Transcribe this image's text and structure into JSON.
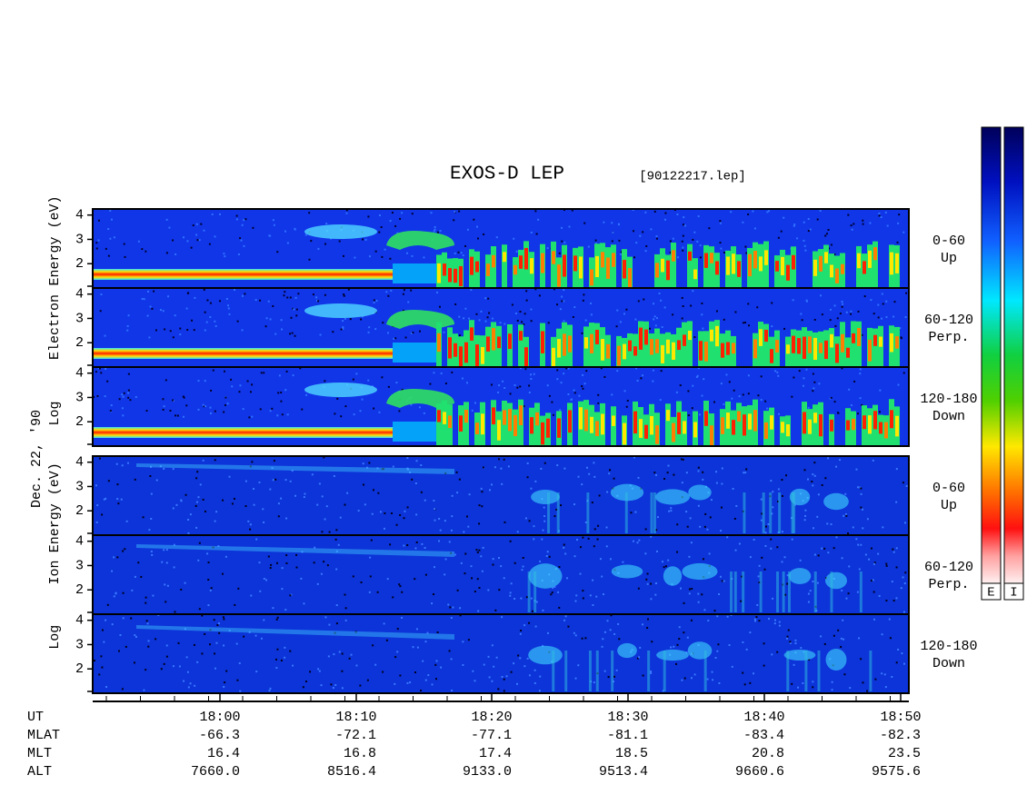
{
  "title": "EXOS-D LEP",
  "file": "[90122217.lep]",
  "date_label": "Dec. 22, '90",
  "electron": {
    "axis_label": [
      "Log",
      "Electron",
      "Energy (eV)"
    ],
    "panels": [
      {
        "lines": [
          "0-60",
          "Up"
        ]
      },
      {
        "lines": [
          "60-120",
          "Perp."
        ]
      },
      {
        "lines": [
          "120-180",
          "Down"
        ]
      }
    ]
  },
  "ion": {
    "axis_label": [
      "Log",
      "Ion",
      "Energy (eV)"
    ],
    "panels": [
      {
        "lines": [
          "0-60",
          "Up"
        ]
      },
      {
        "lines": [
          "60-120",
          "Perp."
        ]
      },
      {
        "lines": [
          "120-180",
          "Down"
        ]
      }
    ]
  },
  "ylim": [
    1,
    4.25
  ],
  "yticks": [
    2,
    3,
    4
  ],
  "xaxis": {
    "row_labels": [
      "UT",
      "MLAT",
      "MLT",
      "ALT"
    ],
    "columns": [
      [
        "18:00",
        "-66.3",
        "16.4",
        "7660.0"
      ],
      [
        "18:10",
        "-72.1",
        "16.8",
        "8516.4"
      ],
      [
        "18:20",
        "-77.1",
        "17.4",
        "9133.0"
      ],
      [
        "18:30",
        "-81.1",
        "18.5",
        "9513.4"
      ],
      [
        "18:40",
        "-83.4",
        "20.8",
        "9660.6"
      ],
      [
        "18:50",
        "-82.3",
        "23.5",
        "9575.6"
      ]
    ]
  },
  "colorbars": [
    "E",
    "I"
  ]
}
